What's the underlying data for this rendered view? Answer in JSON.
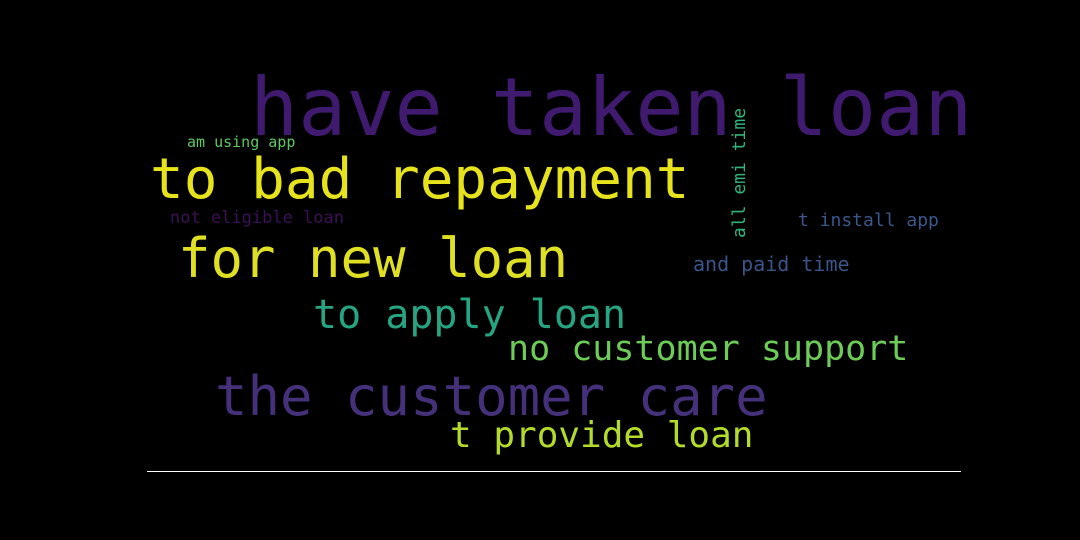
{
  "wordcloud": {
    "phrases": [
      {
        "text": "have taken loan",
        "color": "#3f1a6e"
      },
      {
        "text": "to bad repayment",
        "color": "#e6e31c"
      },
      {
        "text": "for new loan",
        "color": "#dfe024"
      },
      {
        "text": "the customer care",
        "color": "#45317a"
      },
      {
        "text": "to apply loan",
        "color": "#26a583"
      },
      {
        "text": "no customer support",
        "color": "#6dcc57"
      },
      {
        "text": "t provide loan",
        "color": "#b3dc2a"
      },
      {
        "text": "and paid time",
        "color": "#3a5588"
      },
      {
        "text": "t install app",
        "color": "#3b578c"
      },
      {
        "text": "am using app",
        "color": "#5ec962"
      },
      {
        "text": "not eligible loan",
        "color": "#3c1055"
      },
      {
        "text": "all emi time",
        "color": "#2fb47c"
      }
    ]
  }
}
